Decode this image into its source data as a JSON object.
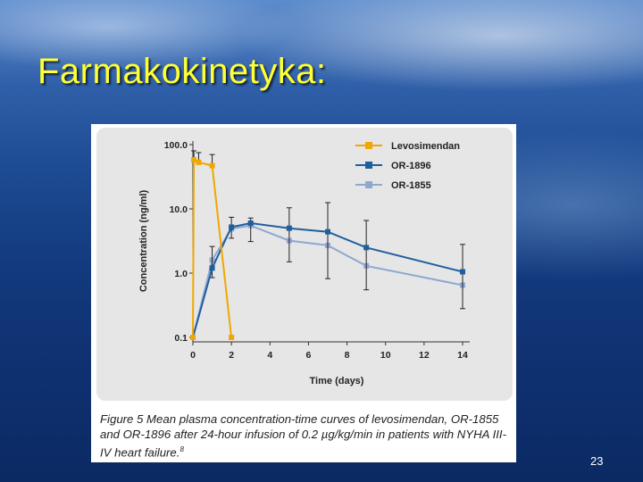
{
  "slide": {
    "title": "Farmakokinetyka:",
    "page_number": "23"
  },
  "caption": {
    "text": "Figure 5  Mean plasma concentration-time curves of levosimendan, OR-1855 and OR-1896 after 24-hour infusion of 0.2 µg/kg/min in patients with NYHA III-IV heart failure.",
    "superscript": "8"
  },
  "colors": {
    "levosimendan": "#f0a800",
    "or1896": "#1f5f9e",
    "or1855": "#8fa8d0"
  },
  "chart_data": {
    "type": "line",
    "xlabel": "Time (days)",
    "ylabel": "Concentration (ng/ml)",
    "y_scale": "log",
    "xlim": [
      0,
      14
    ],
    "ylim": [
      0.1,
      100
    ],
    "x_ticks": [
      "0",
      "2",
      "4",
      "6",
      "8",
      "10",
      "12",
      "14"
    ],
    "y_ticks": [
      "0.1",
      "1.0",
      "10.0",
      "100.0"
    ],
    "grid": false,
    "legend": "top-right",
    "series": [
      {
        "name": "Levosimendan",
        "color": "#f0a800",
        "points": [
          {
            "x": 0.0,
            "y": 0.1
          },
          {
            "x": 0.05,
            "y": 58
          },
          {
            "x": 0.3,
            "y": 53
          },
          {
            "x": 1.0,
            "y": 47
          },
          {
            "x": 2.0,
            "y": 0.1
          }
        ],
        "error_upper": [
          null,
          80,
          75,
          70,
          null
        ]
      },
      {
        "name": "OR-1896",
        "color": "#1f5f9e",
        "points": [
          {
            "x": 0,
            "y": 0.1
          },
          {
            "x": 1,
            "y": 1.2
          },
          {
            "x": 2,
            "y": 5.2
          },
          {
            "x": 3,
            "y": 6.0
          },
          {
            "x": 5,
            "y": 5.0
          },
          {
            "x": 7,
            "y": 4.4
          },
          {
            "x": 9,
            "y": 2.5
          },
          {
            "x": 14,
            "y": 1.05
          }
        ],
        "error_lower": [
          null,
          0.85,
          3.5,
          3.1,
          1.5,
          0.82,
          0.55,
          0.28
        ],
        "error_upper": [
          null,
          2.6,
          7.4,
          7.2,
          10.4,
          12.5,
          6.6,
          2.8
        ]
      },
      {
        "name": "OR-1855",
        "color": "#8fa8d0",
        "points": [
          {
            "x": 0,
            "y": 0.1
          },
          {
            "x": 1,
            "y": 1.6
          },
          {
            "x": 2,
            "y": 4.9
          },
          {
            "x": 3,
            "y": 5.5
          },
          {
            "x": 5,
            "y": 3.2
          },
          {
            "x": 7,
            "y": 2.7
          },
          {
            "x": 9,
            "y": 1.3
          },
          {
            "x": 14,
            "y": 0.65
          }
        ]
      }
    ]
  }
}
